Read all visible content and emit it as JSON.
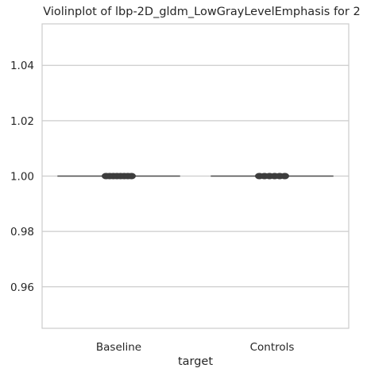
{
  "chart_data": {
    "type": "violin",
    "title": "Violinplot of lbp-2D_gldm_LowGrayLevelEmphasis for 2",
    "xlabel": "target",
    "ylabel": "",
    "categories": [
      "Baseline",
      "Controls"
    ],
    "ylim": [
      0.945,
      1.055
    ],
    "yticks": [
      0.96,
      0.98,
      1.0,
      1.02,
      1.04
    ],
    "ytick_labels": [
      "0.96",
      "0.98",
      "1.00",
      "1.02",
      "1.04"
    ],
    "grid": true,
    "series": [
      {
        "category": "Baseline",
        "values": [
          1.0,
          1.0,
          1.0,
          1.0,
          1.0,
          1.0,
          1.0,
          1.0
        ]
      },
      {
        "category": "Controls",
        "values": [
          1.0,
          1.0,
          1.0,
          1.0,
          1.0,
          1.0
        ]
      }
    ],
    "colors": {
      "line": "#4c4c4c",
      "points": "#3d3d3d",
      "grid": "#cccccc"
    }
  }
}
